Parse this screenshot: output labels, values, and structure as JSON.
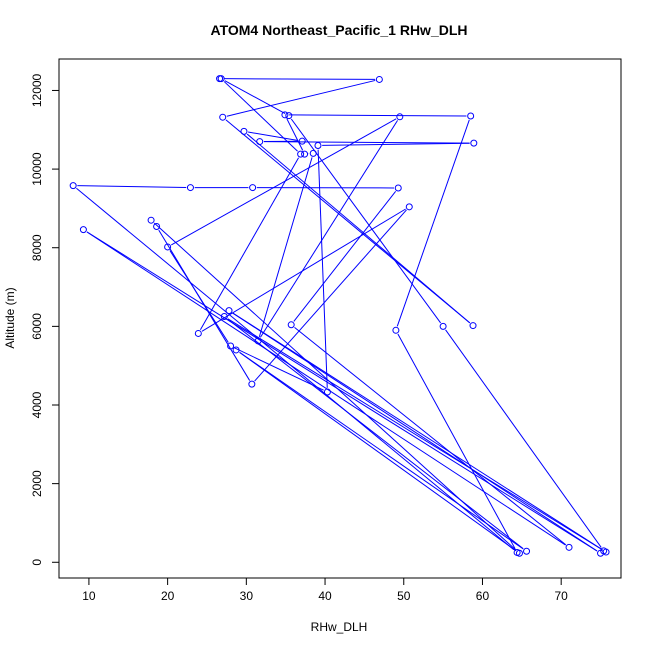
{
  "chart_data": {
    "type": "line",
    "title": "ATOM4 Northeast_Pacific_1 RHw_DLH",
    "xlabel": "RHw_DLH",
    "ylabel": "Altitude (m)",
    "xlim": [
      6.2,
      77.6
    ],
    "ylim": [
      -400,
      12800
    ],
    "xticks": [
      10,
      20,
      30,
      40,
      50,
      60,
      70
    ],
    "yticks": [
      0,
      2000,
      4000,
      6000,
      8000,
      10000,
      12000
    ],
    "grid": false,
    "legend": "none",
    "color": "#0000ff",
    "series": [
      {
        "marker": "open-circle",
        "points": [
          [
            26.6,
            12300
          ],
          [
            46.9,
            12280
          ],
          [
            27.0,
            11320
          ],
          [
            58.8,
            6020
          ],
          [
            29.7,
            10960
          ],
          [
            37.1,
            10710
          ],
          [
            31.7,
            10700
          ],
          [
            58.9,
            10660
          ],
          [
            39.1,
            10600
          ],
          [
            40.3,
            4330
          ],
          [
            28.0,
            5500
          ],
          [
            20.0,
            8020
          ],
          [
            49.5,
            11330
          ],
          [
            31.5,
            5630
          ],
          [
            38.5,
            10400
          ],
          [
            37.4,
            10380
          ],
          [
            34.9,
            11380
          ],
          [
            58.5,
            11350
          ],
          [
            49.0,
            5900
          ],
          [
            64.4,
            250
          ],
          [
            8.0,
            9580
          ],
          [
            22.9,
            9530
          ],
          [
            30.8,
            9530
          ],
          [
            49.3,
            9520
          ],
          [
            35.7,
            6040
          ],
          [
            71.0,
            380
          ],
          [
            9.3,
            8460
          ],
          [
            75.0,
            230
          ],
          [
            27.8,
            6400
          ],
          [
            75.7,
            260
          ],
          [
            27.2,
            6250
          ],
          [
            65.6,
            280
          ],
          [
            28.7,
            5400
          ],
          [
            64.7,
            230
          ],
          [
            17.9,
            8700
          ],
          [
            18.6,
            8540
          ],
          [
            30.7,
            4530
          ],
          [
            50.7,
            9040
          ],
          [
            23.9,
            5820
          ],
          [
            36.9,
            10380
          ],
          [
            26.8,
            12300
          ],
          [
            35.4,
            11360
          ],
          [
            55.0,
            6000
          ],
          [
            75.4,
            290
          ]
        ]
      }
    ]
  }
}
